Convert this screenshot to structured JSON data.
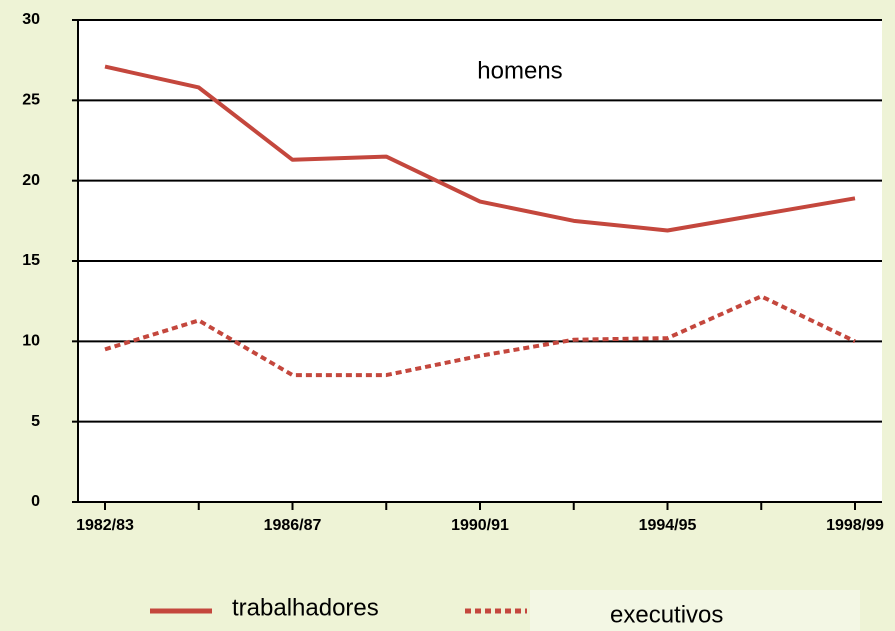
{
  "chart_data": {
    "type": "line",
    "annotation": "homens",
    "categories": [
      "1982/83",
      null,
      "1986/87",
      null,
      "1990/91",
      null,
      "1994/95",
      null,
      "1998/99"
    ],
    "series": [
      {
        "name": "trabalhadores",
        "color": "#c4473d",
        "style": "solid",
        "values": [
          27.1,
          25.8,
          21.3,
          21.5,
          18.7,
          17.5,
          16.9,
          17.9,
          18.9
        ]
      },
      {
        "name": "executivos",
        "color": "#c4473d",
        "style": "dotted",
        "values": [
          9.5,
          11.3,
          7.9,
          7.9,
          9.1,
          10.1,
          10.2,
          12.8,
          10.0
        ]
      }
    ],
    "ylim": [
      0,
      30
    ],
    "yticks": [
      0,
      5,
      10,
      15,
      20,
      25,
      30
    ],
    "grid": true,
    "legend": "bottom"
  }
}
